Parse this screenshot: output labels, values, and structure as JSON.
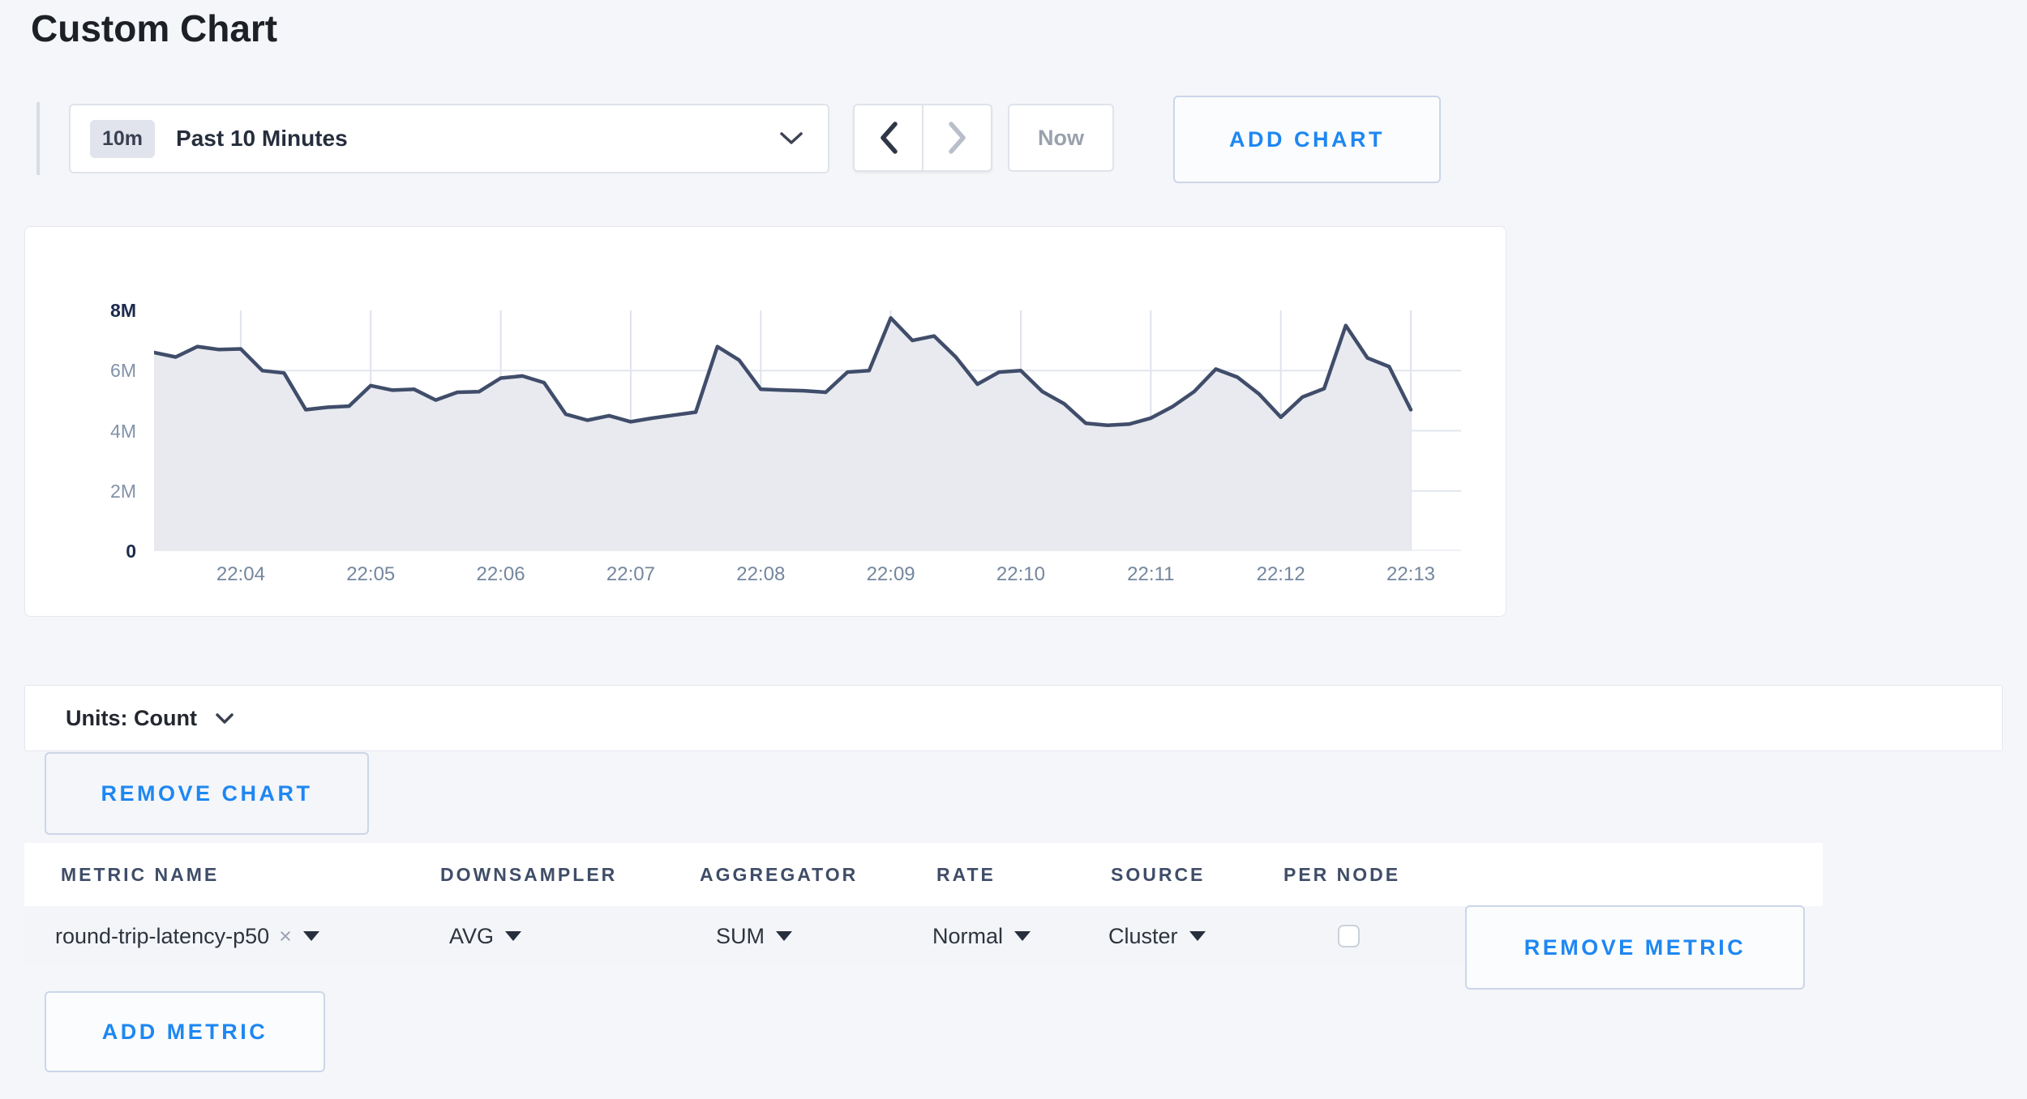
{
  "page": {
    "title": "Custom Chart"
  },
  "toolbar": {
    "time_badge": "10m",
    "time_label": "Past 10 Minutes",
    "now_label": "Now",
    "add_chart_label": "ADD CHART"
  },
  "units_bar": {
    "label": "Units: Count"
  },
  "chart_actions": {
    "remove_chart_label": "REMOVE CHART",
    "add_metric_label": "ADD METRIC"
  },
  "icons": {
    "clear_metric": "×"
  },
  "metrics_table": {
    "headers": [
      "METRIC NAME",
      "DOWNSAMPLER",
      "AGGREGATOR",
      "RATE",
      "SOURCE",
      "PER NODE"
    ],
    "rows": [
      {
        "metric_name": "round-trip-latency-p50",
        "downsampler": "AVG",
        "aggregator": "SUM",
        "rate": "Normal",
        "source": "Cluster",
        "per_node_checked": false,
        "remove_label": "REMOVE METRIC"
      }
    ]
  },
  "colors": {
    "accent_blue": "#1e87f2",
    "line": "#404d6a",
    "fill": "#e8eaf0",
    "hgrid": "#e2e7ef",
    "vgrid": "#dee3ec"
  },
  "chart_data": {
    "type": "area",
    "title": "",
    "ylabel": "count",
    "legend": "none",
    "grid": true,
    "ylim_millions": [
      0,
      8
    ],
    "grid_values_millions": [
      6,
      4,
      2
    ],
    "yticks": [
      {
        "label": "8M",
        "value": 8,
        "emph": true
      },
      {
        "label": "6M",
        "value": 6,
        "emph": false
      },
      {
        "label": "4M",
        "value": 4,
        "emph": false
      },
      {
        "label": "2M",
        "value": 2,
        "emph": false
      },
      {
        "label": "0",
        "value": 0,
        "emph": true
      }
    ],
    "xticks": [
      "22:04",
      "22:05",
      "22:06",
      "22:07",
      "22:08",
      "22:09",
      "22:10",
      "22:11",
      "22:12",
      "22:13"
    ],
    "tick_indices": [
      4,
      10,
      16,
      22,
      28,
      34,
      40,
      46,
      52,
      58
    ],
    "x_times": [
      "22:03:20",
      "22:03:30",
      "22:03:40",
      "22:03:50",
      "22:04:00",
      "22:04:10",
      "22:04:20",
      "22:04:30",
      "22:04:40",
      "22:04:50",
      "22:05:00",
      "22:05:10",
      "22:05:20",
      "22:05:30",
      "22:05:40",
      "22:05:50",
      "22:06:00",
      "22:06:10",
      "22:06:20",
      "22:06:30",
      "22:06:40",
      "22:06:50",
      "22:07:00",
      "22:07:10",
      "22:07:20",
      "22:07:30",
      "22:07:40",
      "22:07:50",
      "22:08:00",
      "22:08:10",
      "22:08:20",
      "22:08:30",
      "22:08:40",
      "22:08:50",
      "22:09:00",
      "22:09:10",
      "22:09:20",
      "22:09:30",
      "22:09:40",
      "22:09:50",
      "22:10:00",
      "22:10:10",
      "22:10:20",
      "22:10:30",
      "22:10:40",
      "22:10:50",
      "22:11:00",
      "22:11:10",
      "22:11:20",
      "22:11:30",
      "22:11:40",
      "22:11:50",
      "22:12:00",
      "22:12:10",
      "22:12:20",
      "22:12:30",
      "22:12:40",
      "22:12:50",
      "22:13:00"
    ],
    "values_millions": [
      6.6,
      6.45,
      6.8,
      6.7,
      6.72,
      6.0,
      5.92,
      4.7,
      4.78,
      4.82,
      5.5,
      5.35,
      5.38,
      5.02,
      5.28,
      5.3,
      5.75,
      5.82,
      5.6,
      4.55,
      4.35,
      4.5,
      4.3,
      4.42,
      4.52,
      4.62,
      6.8,
      6.35,
      5.38,
      5.35,
      5.33,
      5.28,
      5.95,
      6.0,
      7.75,
      7.0,
      7.15,
      6.45,
      5.55,
      5.95,
      6.0,
      5.3,
      4.9,
      4.25,
      4.18,
      4.22,
      4.42,
      4.8,
      5.3,
      6.05,
      5.78,
      5.22,
      4.45,
      5.12,
      5.4,
      7.5,
      6.42,
      6.13,
      4.7
    ]
  }
}
